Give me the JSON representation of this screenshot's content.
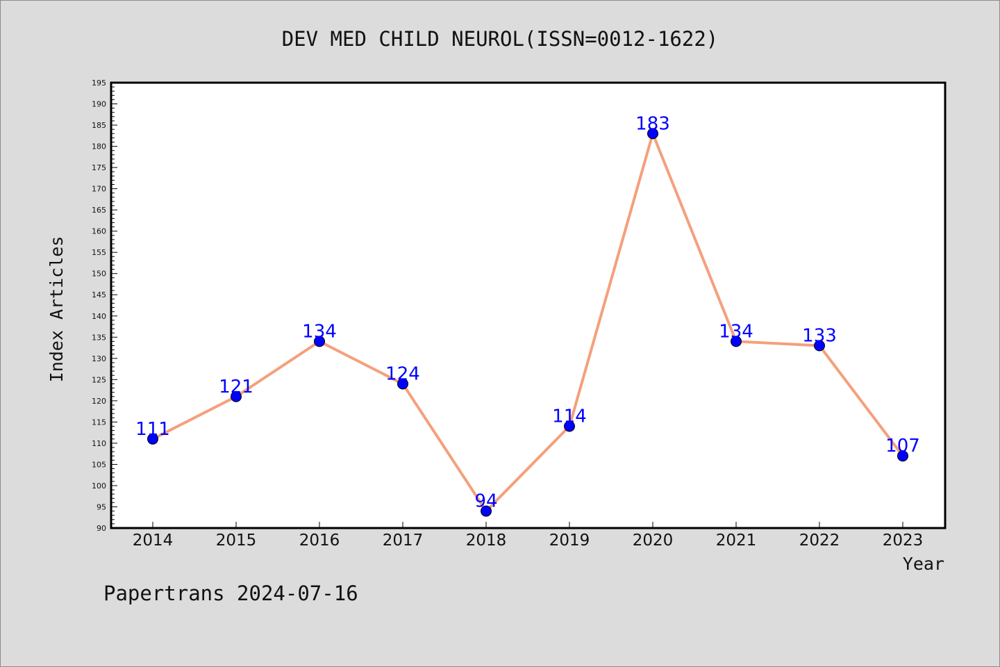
{
  "chart_data": {
    "type": "line",
    "title": "DEV MED CHILD NEUROL(ISSN=0012-1622)",
    "xlabel": "Year",
    "ylabel": "Index Articles",
    "categories": [
      "2014",
      "2015",
      "2016",
      "2017",
      "2018",
      "2019",
      "2020",
      "2021",
      "2022",
      "2023"
    ],
    "values": [
      111,
      121,
      134,
      124,
      94,
      114,
      183,
      134,
      133,
      107
    ],
    "ylim": [
      90,
      195
    ],
    "ytick_step": 5,
    "grid": false,
    "line_color": "#f4a07c",
    "marker_color": "#0000ff",
    "label_color": "#0000ff"
  },
  "footer": "Papertrans 2024-07-16"
}
